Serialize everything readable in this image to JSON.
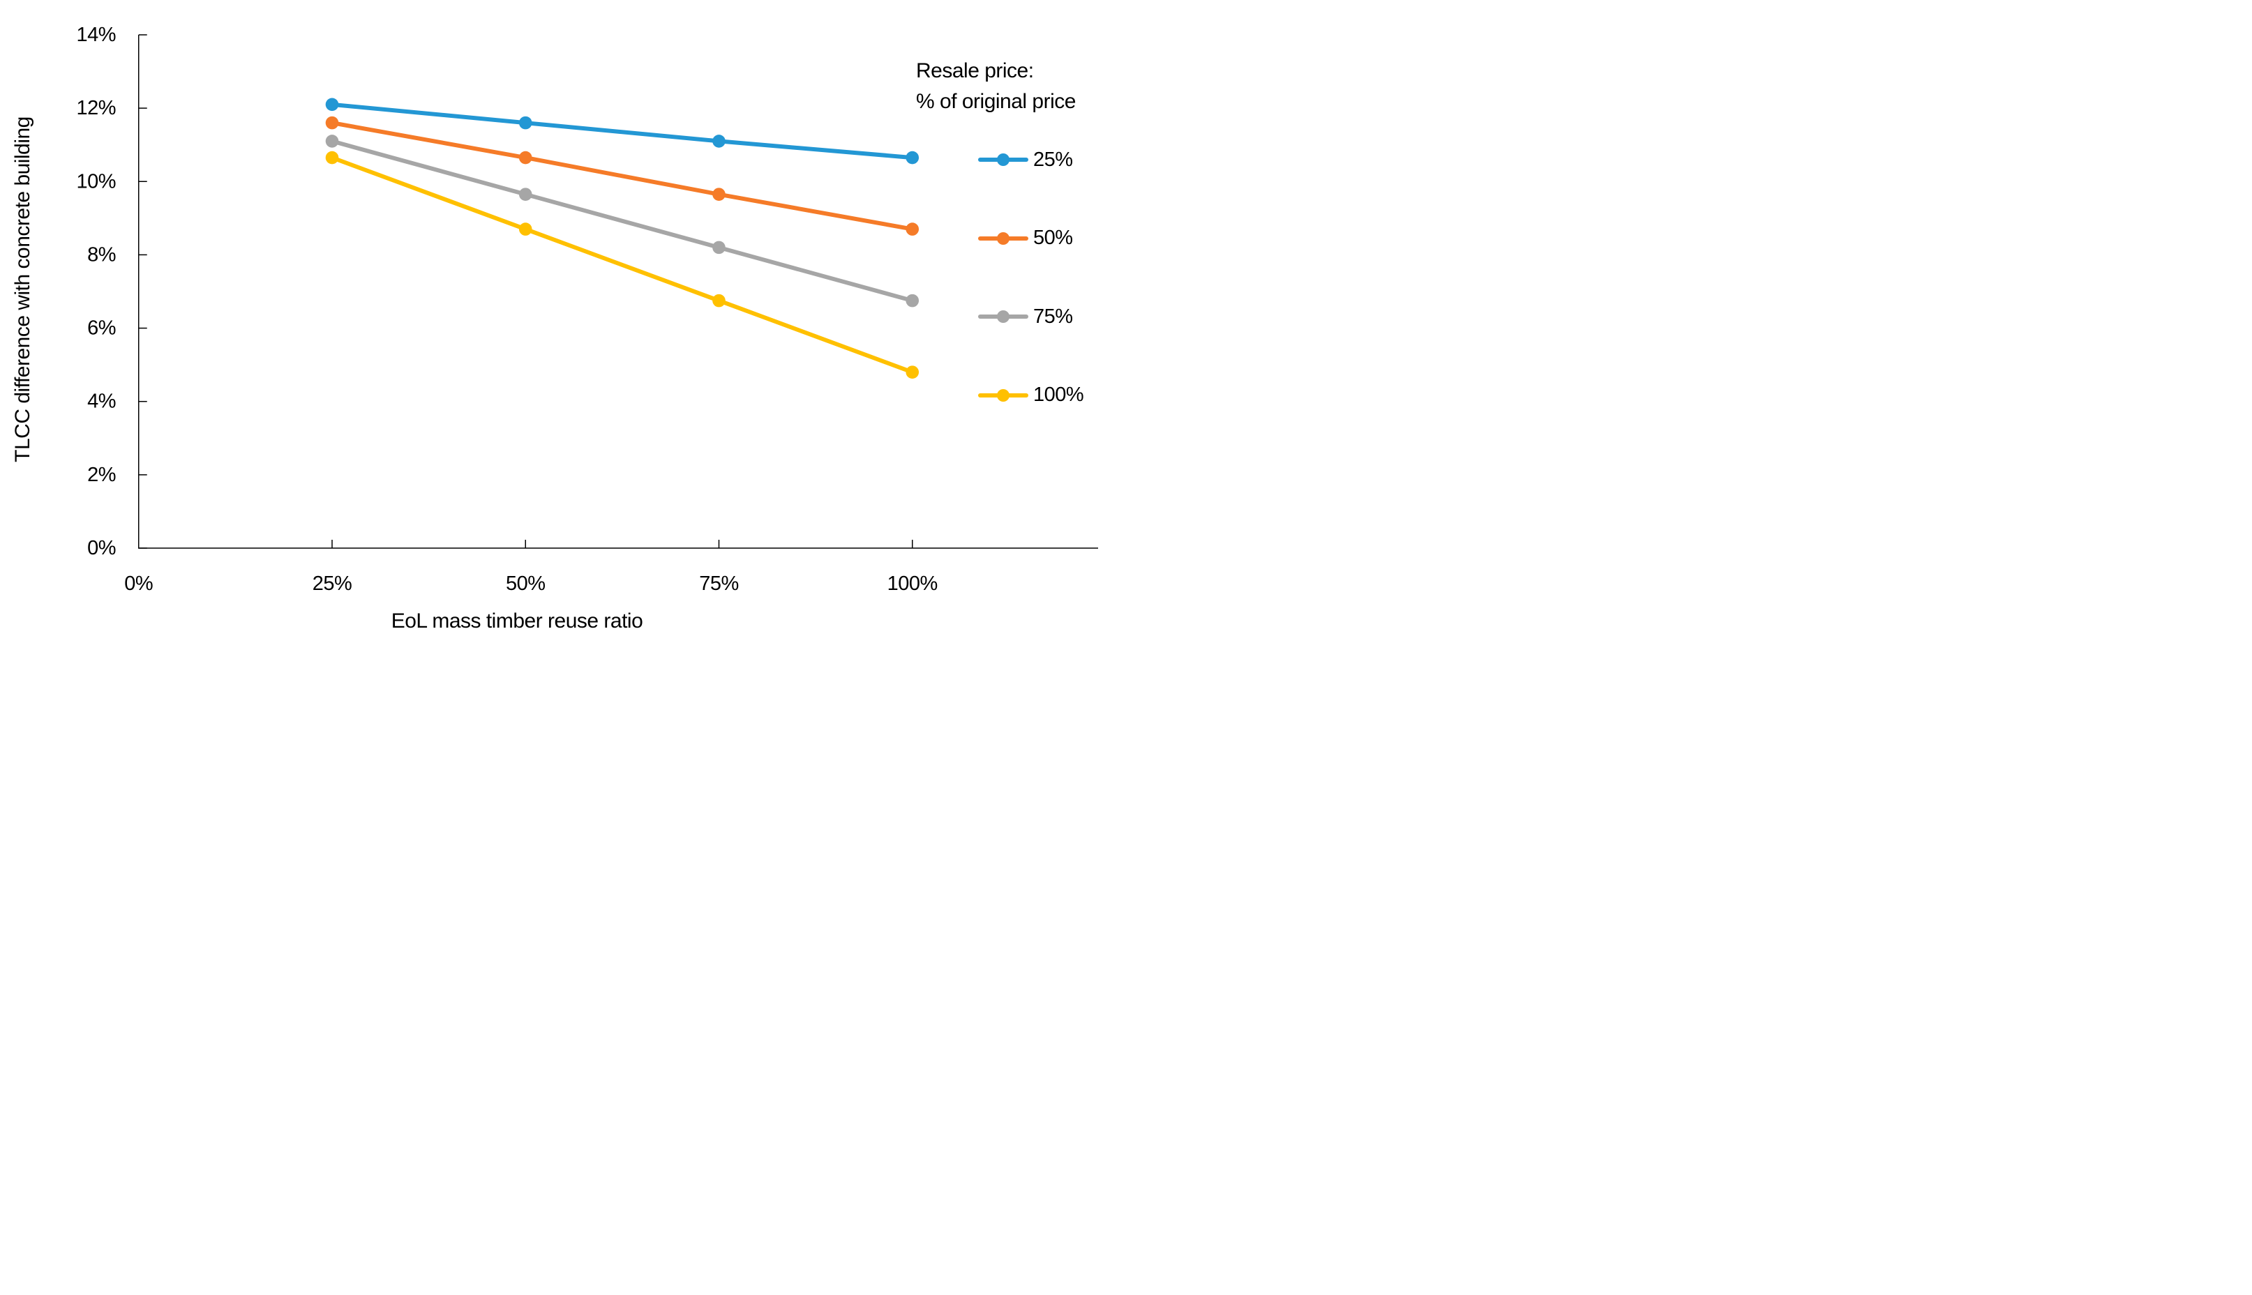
{
  "legend": {
    "title_line1": "Resale price:",
    "title_line2": "% of original price"
  },
  "chart_data": {
    "type": "line",
    "title": "",
    "xlabel": "EoL mass timber reuse ratio",
    "ylabel": "TLCC difference with concrete building",
    "legend_title": "Resale price: % of original price",
    "legend_position": "right",
    "grid": false,
    "x_tick_labels": [
      "0%",
      "25%",
      "50%",
      "75%",
      "100%"
    ],
    "x_tick_values": [
      0,
      0.25,
      0.5,
      0.75,
      1.0
    ],
    "x_values": [
      0.25,
      0.5,
      0.75,
      1.0
    ],
    "y_tick_labels": [
      "0%",
      "2%",
      "4%",
      "6%",
      "8%",
      "10%",
      "12%",
      "14%"
    ],
    "y_tick_step_pct": 2,
    "ylim_pct": [
      0,
      14
    ],
    "xlim": [
      0,
      1.24
    ],
    "axis_color": "#000000",
    "series": [
      {
        "name": "25%",
        "color": "#2397d4",
        "values_pct": [
          12.1,
          11.6,
          11.1,
          10.65
        ]
      },
      {
        "name": "50%",
        "color": "#f57b28",
        "values_pct": [
          11.6,
          10.65,
          9.65,
          8.7
        ]
      },
      {
        "name": "75%",
        "color": "#a6a6a6",
        "values_pct": [
          11.1,
          9.65,
          8.2,
          6.75
        ]
      },
      {
        "name": "100%",
        "color": "#ffc000",
        "values_pct": [
          10.65,
          8.7,
          6.75,
          4.8
        ]
      }
    ]
  }
}
